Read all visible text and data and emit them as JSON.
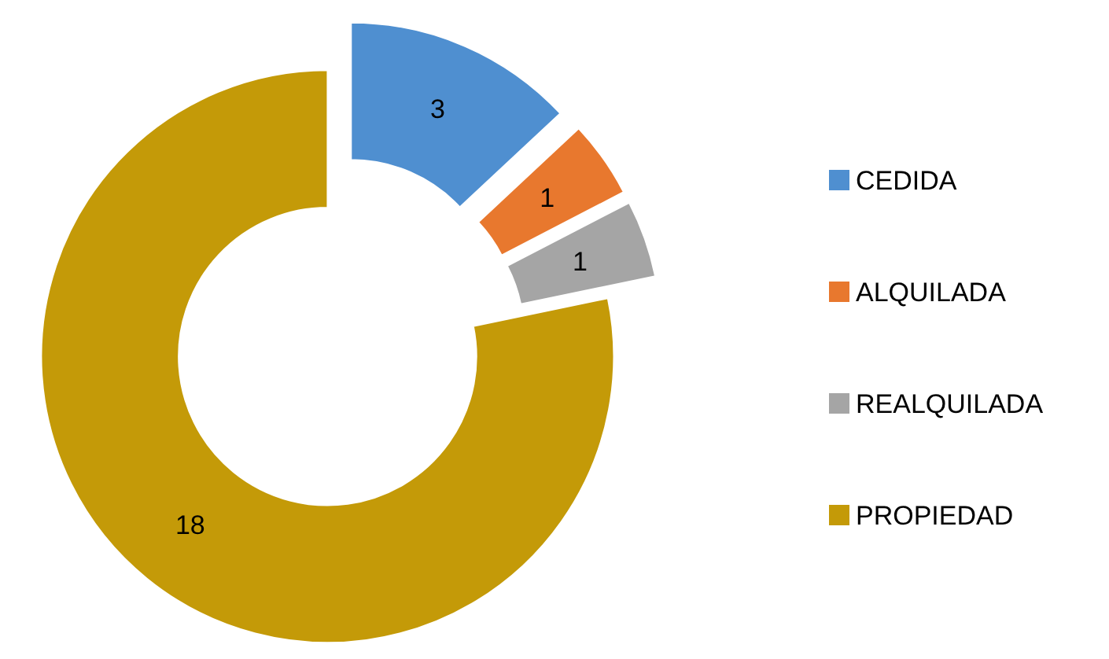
{
  "chart_data": {
    "type": "donut",
    "categories": [
      "CEDIDA",
      "ALQUILADA",
      "REALQUILADA",
      "PROPIEDAD"
    ],
    "values": [
      3,
      1,
      1,
      18
    ],
    "colors": [
      "#4f8fd0",
      "#e8782e",
      "#a5a5a5",
      "#c49a08"
    ],
    "data_labels": true,
    "legend": "right"
  }
}
